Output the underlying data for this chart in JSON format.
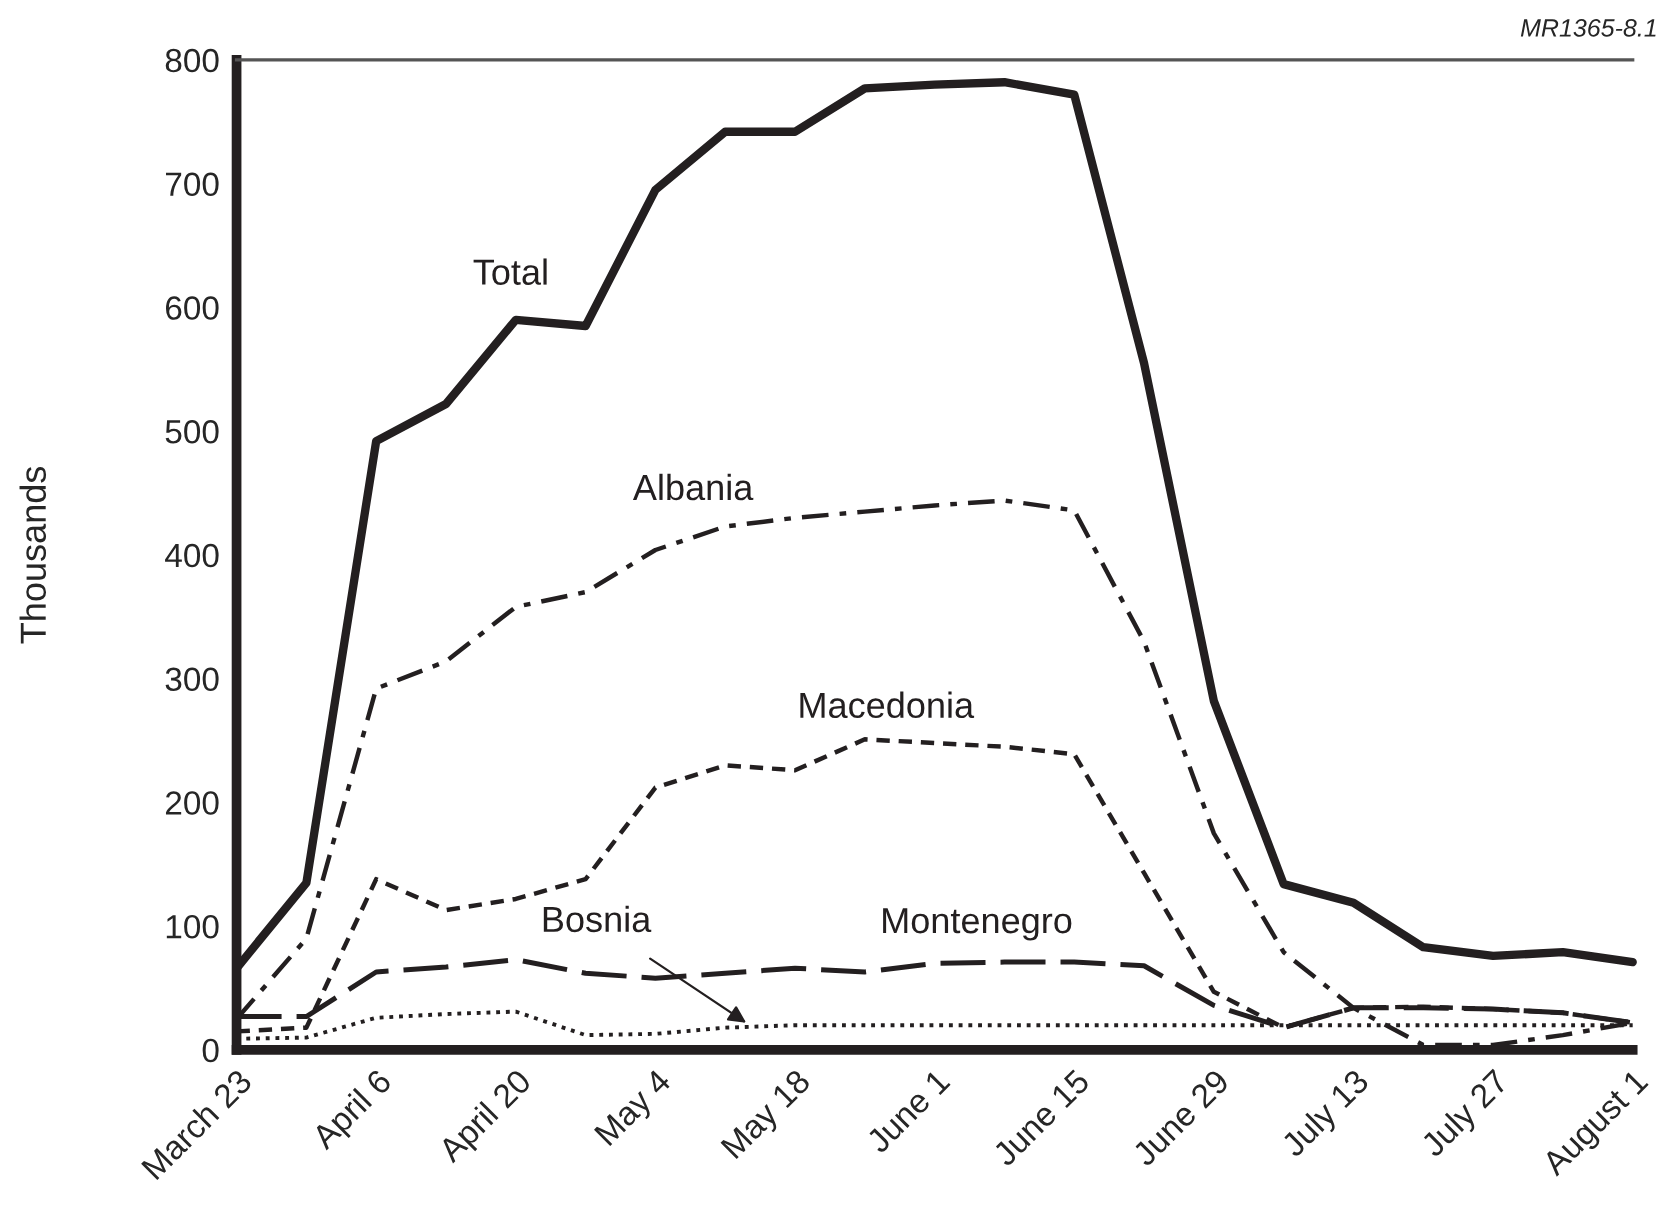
{
  "chart_data": {
    "type": "line",
    "ylabel": "Thousands",
    "annotations": [
      "MR1365-8.1"
    ],
    "categories": [
      "March 23",
      null,
      "April 6",
      null,
      "April 20",
      null,
      "May 4",
      null,
      "May 18",
      null,
      "June 1",
      null,
      "June 15",
      null,
      "June 29",
      null,
      "July 13",
      null,
      "July 27",
      null,
      "August 1"
    ],
    "ylim": [
      0,
      800
    ],
    "yticks": [
      0,
      100,
      200,
      300,
      400,
      500,
      600,
      700,
      800
    ],
    "grid": false,
    "legend": false,
    "marker": "none",
    "series": [
      {
        "name": "Total",
        "color": "#231f20",
        "line_style": "solid",
        "values": [
          66,
          135,
          492,
          522,
          590,
          585,
          695,
          742,
          742,
          777,
          780,
          782,
          772,
          555,
          282,
          134,
          119,
          83,
          76,
          79,
          71
        ]
      },
      {
        "name": "Albania",
        "color": "#231f20",
        "line_style": "dashdot",
        "values": [
          25,
          90,
          292,
          314,
          358,
          370,
          404,
          423,
          430,
          435,
          440,
          444,
          436,
          330,
          175,
          79,
          34,
          4,
          4,
          12,
          22
        ]
      },
      {
        "name": "Macedonia",
        "color": "#231f20",
        "line_style": "dashed",
        "values": [
          15,
          18,
          138,
          113,
          122,
          138,
          212,
          230,
          226,
          251,
          248,
          245,
          239,
          143,
          47,
          18,
          34,
          35,
          33,
          30,
          22
        ]
      },
      {
        "name": "Bosnia",
        "color": "#231f20",
        "line_style": "dotted",
        "values": [
          9,
          10,
          26,
          29,
          31,
          12,
          13,
          18,
          20,
          20,
          20,
          20,
          20,
          20,
          20,
          20,
          20,
          20,
          20,
          20,
          20
        ]
      },
      {
        "name": "Montenegro",
        "color": "#231f20",
        "line_style": "longdash",
        "values": [
          27,
          27,
          63,
          67,
          73,
          62,
          58,
          62,
          66,
          63,
          70,
          71,
          71,
          68,
          36,
          18,
          34,
          34,
          33,
          30,
          22
        ]
      }
    ]
  }
}
